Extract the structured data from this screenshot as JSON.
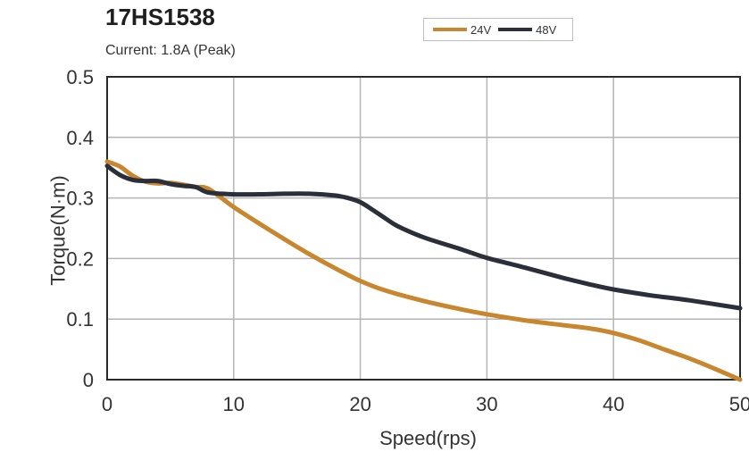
{
  "chart_data": {
    "type": "line",
    "title": "17HS1538",
    "subtitle": "Current: 1.8A (Peak)",
    "xlabel": "Speed(rps)",
    "ylabel": "Torque(N·m)",
    "xlim": [
      0,
      50
    ],
    "ylim": [
      0,
      0.5
    ],
    "xticks": [
      "0",
      "10",
      "20",
      "30",
      "40",
      "50"
    ],
    "yticks": [
      "0",
      "0.1",
      "0.2",
      "0.3",
      "0.4",
      "0.5"
    ],
    "grid": true,
    "legend_position": "top-right",
    "series": [
      {
        "name": "24V",
        "color": "#C8862E",
        "x": [
          0,
          1,
          2,
          3,
          4,
          5,
          6,
          7,
          8,
          10,
          12,
          14,
          16,
          18,
          20,
          22,
          25,
          28,
          30,
          33,
          36,
          38,
          40,
          42,
          44,
          46,
          48,
          50
        ],
        "y": [
          0.36,
          0.352,
          0.337,
          0.327,
          0.324,
          0.325,
          0.322,
          0.318,
          0.315,
          0.285,
          0.258,
          0.232,
          0.207,
          0.184,
          0.163,
          0.147,
          0.13,
          0.116,
          0.108,
          0.098,
          0.09,
          0.085,
          0.077,
          0.065,
          0.05,
          0.035,
          0.018,
          0.0
        ]
      },
      {
        "name": "48V",
        "color": "#2B2F3A",
        "x": [
          0,
          1,
          2,
          3,
          4,
          5,
          6,
          7,
          8,
          10,
          12,
          14,
          16,
          18,
          19,
          20,
          21,
          22,
          23,
          25,
          28,
          30,
          33,
          36,
          38,
          40,
          43,
          46,
          50
        ],
        "y": [
          0.353,
          0.338,
          0.33,
          0.328,
          0.328,
          0.323,
          0.32,
          0.318,
          0.309,
          0.306,
          0.306,
          0.307,
          0.307,
          0.304,
          0.3,
          0.293,
          0.28,
          0.266,
          0.253,
          0.235,
          0.215,
          0.201,
          0.185,
          0.168,
          0.158,
          0.149,
          0.139,
          0.131,
          0.118
        ]
      }
    ]
  }
}
